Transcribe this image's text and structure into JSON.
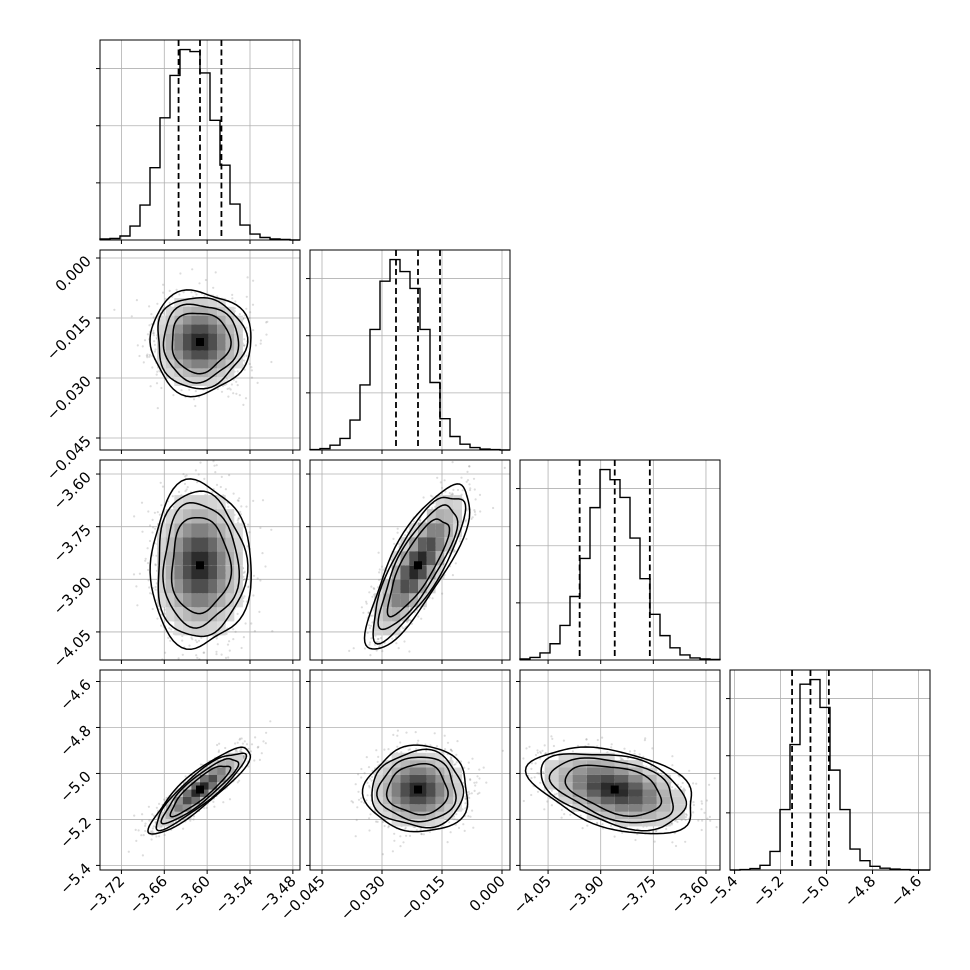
{
  "chart_data": {
    "type": "corner",
    "n_params": 4,
    "grid": true,
    "parameters": [
      {
        "mean": -3.61,
        "std": 0.03,
        "range": [
          -3.75,
          -3.47
        ],
        "quantiles": [
          -3.64,
          -3.61,
          -3.58
        ],
        "ticks": [
          -3.72,
          -3.66,
          -3.6,
          -3.54,
          -3.48
        ],
        "tick_labels": [
          "−3.72",
          "−3.66",
          "−3.60",
          "−3.54",
          "−3.48"
        ]
      },
      {
        "mean": -0.021,
        "std": 0.0055,
        "range": [
          -0.048,
          0.002
        ],
        "quantiles": [
          -0.0265,
          -0.021,
          -0.0155
        ],
        "ticks": [
          -0.045,
          -0.03,
          -0.015,
          0.0
        ],
        "tick_labels": [
          "−0.045",
          "−0.030",
          "−0.015",
          "0.000"
        ]
      },
      {
        "mean": -3.86,
        "std": 0.1,
        "range": [
          -4.13,
          -3.56
        ],
        "quantiles": [
          -3.96,
          -3.86,
          -3.76
        ],
        "ticks": [
          -4.05,
          -3.9,
          -3.75,
          -3.6
        ],
        "tick_labels": [
          "−4.05",
          "−3.90",
          "−3.75",
          "−3.60"
        ]
      },
      {
        "mean": -5.07,
        "std": 0.08,
        "range": [
          -5.42,
          -4.55
        ],
        "quantiles": [
          -5.15,
          -5.07,
          -4.99
        ],
        "ticks": [
          -5.4,
          -5.2,
          -5.0,
          -4.8,
          -4.6
        ],
        "tick_labels": [
          "−5.4",
          "−5.2",
          "−5.0",
          "−4.8",
          "−4.6"
        ]
      }
    ],
    "histograms": [
      {
        "bins": 20,
        "counts": [
          2,
          3,
          8,
          28,
          70,
          145,
          245,
          330,
          382,
          378,
          335,
          240,
          150,
          72,
          30,
          12,
          5,
          2,
          1,
          0
        ]
      },
      {
        "bins": 20,
        "counts": [
          1,
          3,
          10,
          24,
          62,
          135,
          250,
          350,
          395,
          370,
          335,
          250,
          140,
          65,
          28,
          12,
          5,
          2,
          1,
          0
        ]
      },
      {
        "bins": 20,
        "counts": [
          2,
          5,
          14,
          32,
          68,
          125,
          200,
          300,
          375,
          355,
          320,
          240,
          160,
          90,
          48,
          24,
          10,
          4,
          2,
          1
        ]
      },
      {
        "bins": 20,
        "counts": [
          0,
          1,
          3,
          10,
          40,
          130,
          270,
          400,
          410,
          350,
          215,
          130,
          45,
          20,
          8,
          4,
          2,
          1,
          0,
          0
        ]
      }
    ],
    "correlations": [
      {
        "pair": [
          0,
          1
        ],
        "rho": 0.0
      },
      {
        "pair": [
          0,
          2
        ],
        "rho": 0.0
      },
      {
        "pair": [
          1,
          2
        ],
        "rho": 0.8
      },
      {
        "pair": [
          0,
          3
        ],
        "rho": 0.88
      },
      {
        "pair": [
          1,
          3
        ],
        "rho": 0.0
      },
      {
        "pair": [
          2,
          3
        ],
        "rho": -0.4
      }
    ],
    "contour_levels_sigma": [
      0.5,
      1.0,
      1.5,
      2.0
    ]
  }
}
